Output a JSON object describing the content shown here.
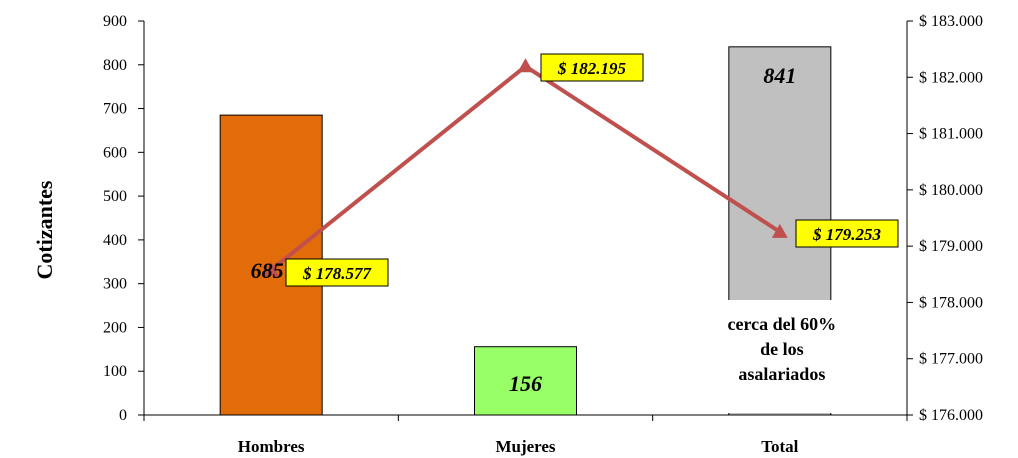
{
  "chart_data": {
    "type": "bar",
    "categories": [
      "Hombres",
      "Mujeres",
      "Total"
    ],
    "ylabel": "Cotizantes",
    "ylim": [
      0,
      900
    ],
    "yticks": [
      0,
      100,
      200,
      300,
      400,
      500,
      600,
      700,
      800,
      900
    ],
    "y2lim": [
      176000,
      183000
    ],
    "y2ticks": [
      "$ 176.000",
      "$ 177.000",
      "$ 178.000",
      "$ 179.000",
      "$ 180.000",
      "$ 181.000",
      "$ 182.000",
      "$ 183.000"
    ],
    "y2values": [
      176000,
      177000,
      178000,
      179000,
      180000,
      181000,
      182000,
      183000
    ],
    "bars": {
      "values": [
        685,
        156,
        841
      ],
      "labels": [
        "685",
        "156",
        "841"
      ],
      "colors": [
        "#e36c0a",
        "#99ff66",
        "#c0c0c0"
      ]
    },
    "line": {
      "values": [
        178577,
        182195,
        179253
      ],
      "labels": [
        "$ 178.577",
        "$ 182.195",
        "$ 179.253"
      ],
      "color": "#c0504d",
      "label_bg": "#ffff00"
    },
    "annotation": [
      "cerca del 60%",
      "de los",
      "asalariados"
    ]
  }
}
